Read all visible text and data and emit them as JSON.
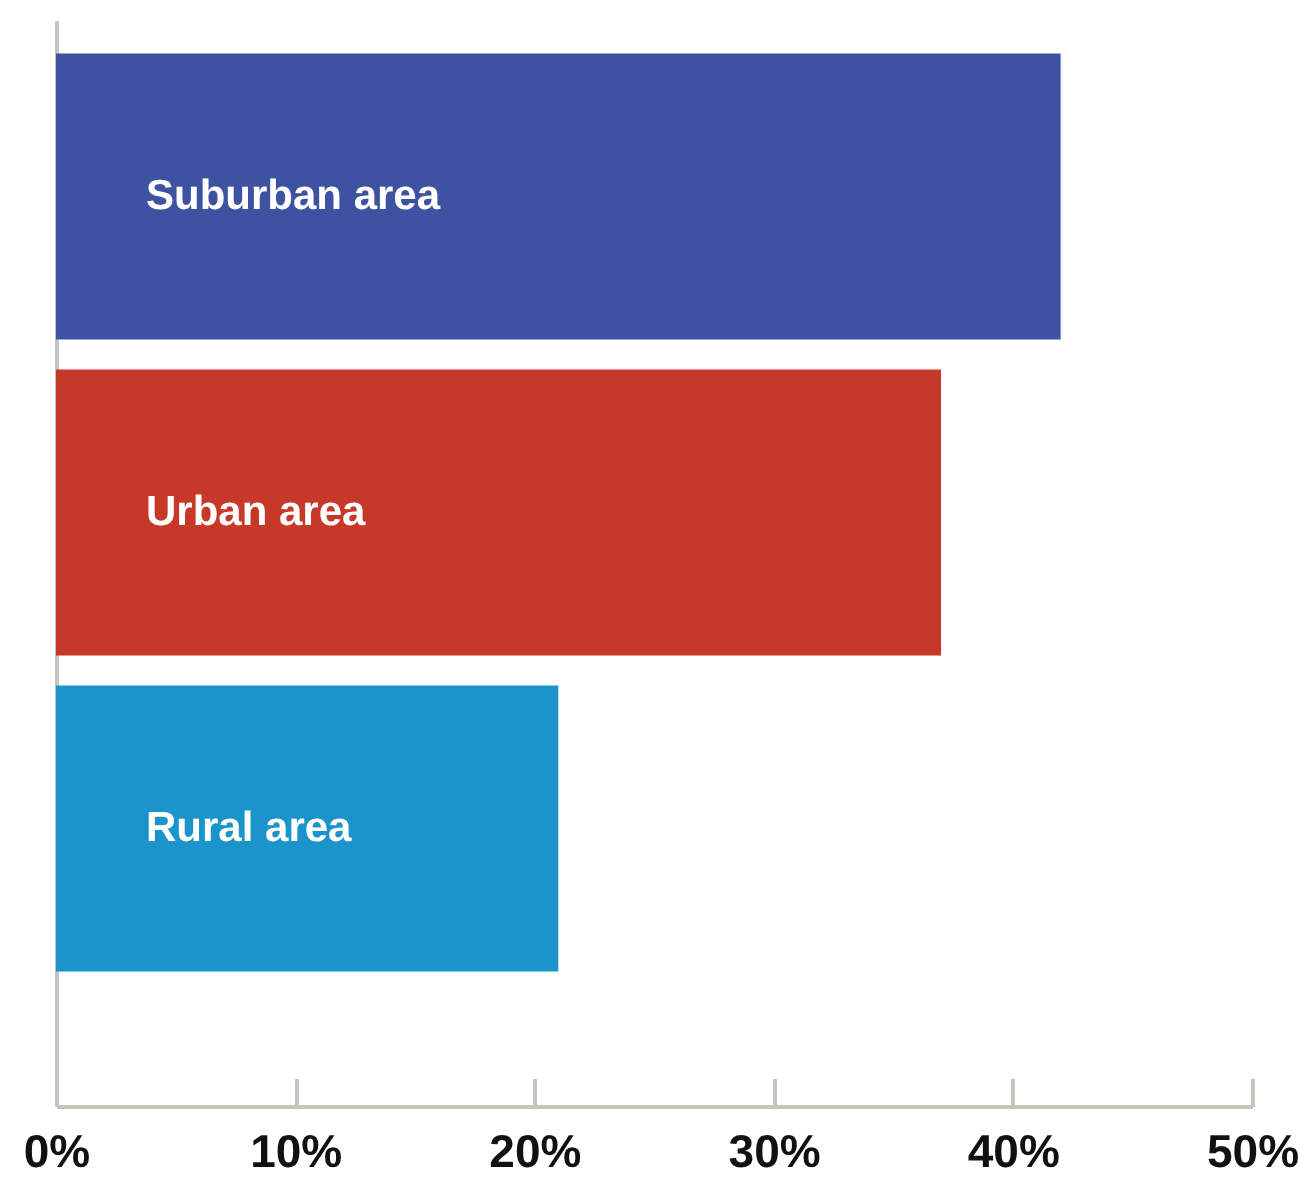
{
  "chart_data": {
    "type": "bar",
    "orientation": "horizontal",
    "categories": [
      "Suburban area",
      "Urban area",
      "Rural area"
    ],
    "values": [
      42,
      37,
      21
    ],
    "colors": [
      "#3d53a1",
      "#c63828",
      "#1a94ca"
    ],
    "xlim": [
      0,
      50
    ],
    "xticks": [
      {
        "value": 0,
        "label": "0%"
      },
      {
        "value": 10,
        "label": "10%"
      },
      {
        "value": 20,
        "label": "20%"
      },
      {
        "value": 30,
        "label": "30%"
      },
      {
        "value": 40,
        "label": "40%"
      },
      {
        "value": 50,
        "label": "50%"
      }
    ],
    "grid": false,
    "legend": false
  }
}
